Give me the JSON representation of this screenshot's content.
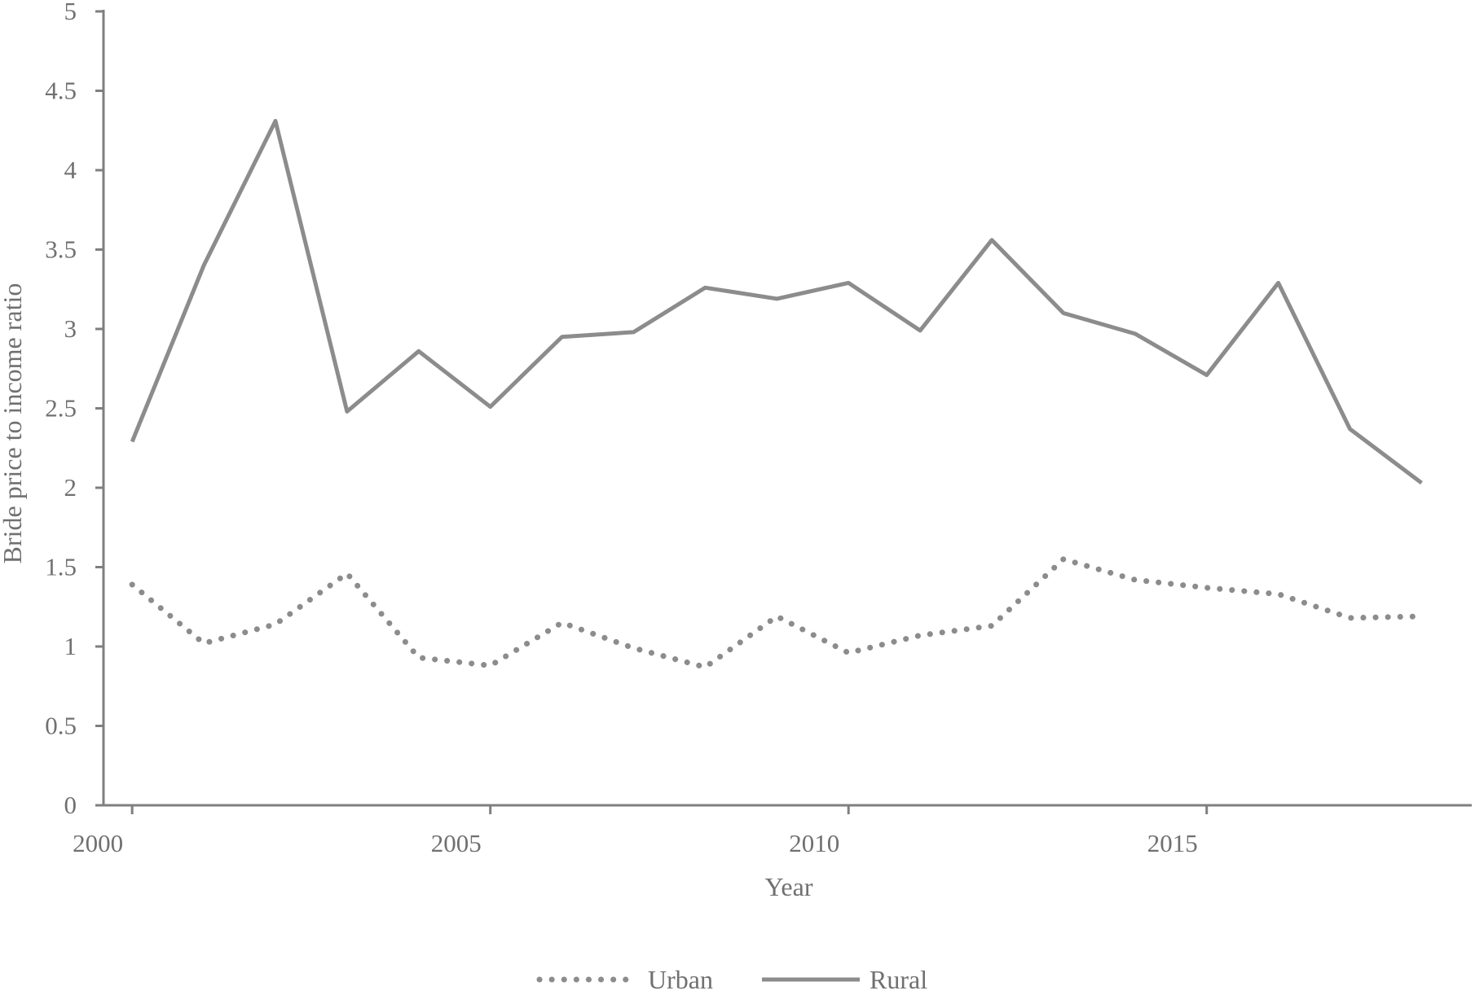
{
  "chart_data": {
    "type": "line",
    "title": "",
    "xlabel": "Year",
    "ylabel": "Bride price to income ratio",
    "x": [
      2000,
      2001,
      2002,
      2003,
      2004,
      2005,
      2006,
      2007,
      2008,
      2009,
      2010,
      2011,
      2012,
      2013,
      2014,
      2015,
      2016,
      2017,
      2018
    ],
    "xticks": [
      "2000",
      "2005",
      "2010",
      "2015"
    ],
    "yticks": [
      "0",
      "0.5",
      "1",
      "1.5",
      "2",
      "2.5",
      "3",
      "3.5",
      "4",
      "4.5",
      "5"
    ],
    "xlim": [
      1999.6,
      2018.7
    ],
    "ylim": [
      0,
      5
    ],
    "grid": false,
    "legend_position": "bottom",
    "series": [
      {
        "name": "Urban",
        "style": "dotted",
        "color": "#8c8c8c",
        "values": [
          1.39,
          1.02,
          1.14,
          1.46,
          0.93,
          0.88,
          1.15,
          0.99,
          0.87,
          1.19,
          0.96,
          1.07,
          1.13,
          1.55,
          1.42,
          1.37,
          1.33,
          1.18,
          1.19
        ]
      },
      {
        "name": "Rural",
        "style": "solid",
        "color": "#8c8c8c",
        "values": [
          2.29,
          3.4,
          4.31,
          2.48,
          2.86,
          2.51,
          2.95,
          2.98,
          3.26,
          3.19,
          3.29,
          2.99,
          3.56,
          3.1,
          2.97,
          2.71,
          3.29,
          2.37,
          2.03
        ]
      }
    ]
  },
  "colors": {
    "axis": "#7f7f7f",
    "text": "#707070"
  }
}
